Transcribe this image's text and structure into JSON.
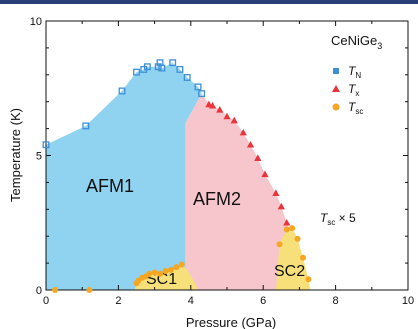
{
  "chart_data": {
    "type": "scatter",
    "title": "CeNiGe",
    "title_subscript": "3",
    "xlabel": "Pressure (GPa)",
    "ylabel": "Temperature (K)",
    "xlim": [
      0,
      10
    ],
    "ylim": [
      0,
      10
    ],
    "x_ticks": [
      "0",
      "2",
      "4",
      "6",
      "8",
      "10"
    ],
    "y_ticks": [
      "0",
      "5",
      "10"
    ],
    "colors": {
      "afm1": "#8fd3f0",
      "afm2": "#f6c6cc",
      "sc": "#f7e07a",
      "tn": "#3d8fd8",
      "tx": "#e8343a",
      "tsc": "#f5a623",
      "axis": "#111111"
    },
    "regions": [
      {
        "label": "AFM1"
      },
      {
        "label": "AFM2"
      },
      {
        "label": "SC1"
      },
      {
        "label": "SC2"
      }
    ],
    "annotation": {
      "text": "T",
      "sub": "sc",
      "suffix": " × 5"
    },
    "legend": [
      {
        "symbol": "square",
        "text": "T",
        "sub": "N"
      },
      {
        "symbol": "triangle",
        "text": "T",
        "sub": "x"
      },
      {
        "symbol": "circle",
        "text": "T",
        "sub": "sc"
      }
    ],
    "series": [
      {
        "symbol": "square",
        "x": [
          0.0,
          1.1,
          2.1,
          2.5,
          2.7,
          2.8,
          3.1,
          3.15,
          3.2,
          3.5,
          3.7,
          3.9,
          4.2,
          4.3
        ],
        "y": [
          5.4,
          6.1,
          7.4,
          8.1,
          8.2,
          8.3,
          8.3,
          8.45,
          8.25,
          8.45,
          8.2,
          7.9,
          7.55,
          7.3
        ]
      },
      {
        "symbol": "triangle",
        "x": [
          4.5,
          4.6,
          4.8,
          5.0,
          5.2,
          5.45,
          5.65,
          5.85,
          6.05,
          6.35,
          6.5,
          6.65
        ],
        "y": [
          6.9,
          6.85,
          6.7,
          6.45,
          6.3,
          5.85,
          5.4,
          4.9,
          4.3,
          3.6,
          3.1,
          2.5
        ]
      },
      {
        "symbol": "circle",
        "x": [
          0.25,
          1.2,
          2.5,
          2.55,
          2.65,
          2.75,
          2.85,
          3.0,
          3.15,
          3.3,
          3.45,
          3.6,
          3.75,
          6.45,
          6.65,
          6.8,
          6.95,
          7.1,
          7.25
        ],
        "y": [
          0.0,
          0.0,
          0.25,
          0.35,
          0.45,
          0.5,
          0.6,
          0.65,
          0.6,
          0.7,
          0.75,
          0.85,
          0.95,
          1.7,
          2.25,
          2.3,
          1.9,
          1.2,
          0.4
        ]
      }
    ]
  }
}
